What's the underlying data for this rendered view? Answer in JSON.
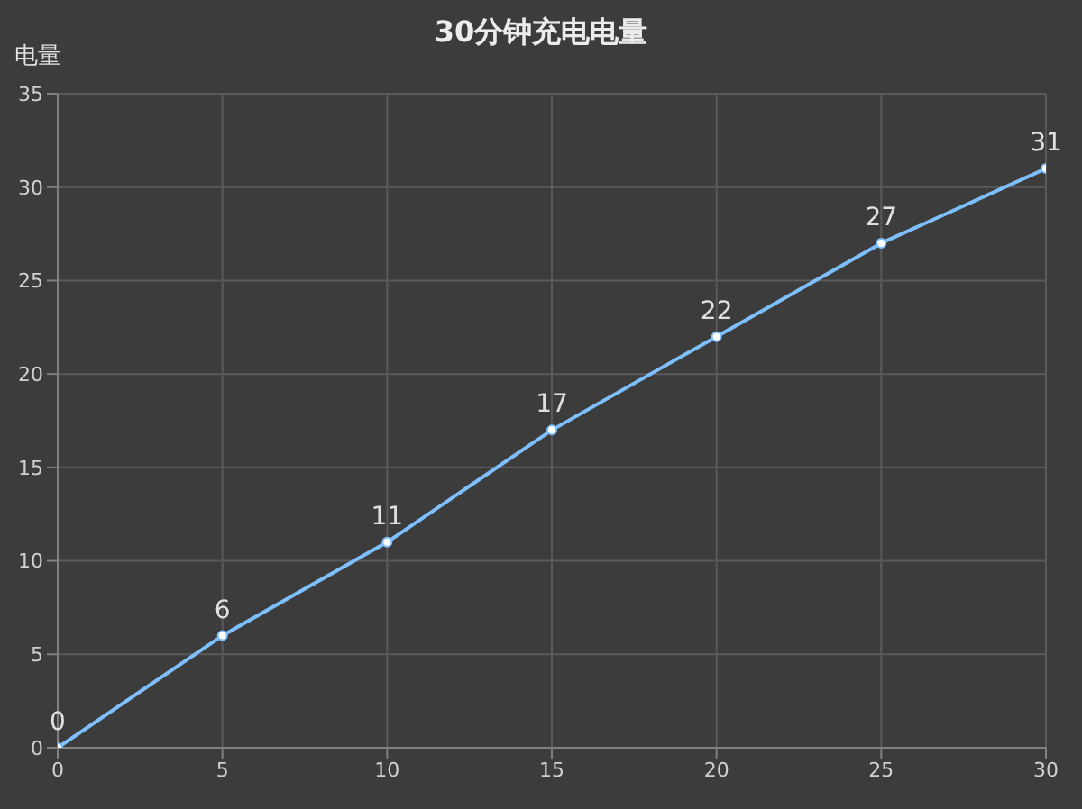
{
  "chart_data": {
    "type": "line",
    "title": "30分钟充电电量",
    "ylabel": "电量",
    "x": [
      0,
      5,
      10,
      15,
      20,
      25,
      30
    ],
    "series": [
      {
        "color": "#7ec0ff",
        "values": [
          0,
          6,
          11,
          17,
          22,
          27,
          31
        ]
      }
    ],
    "xlim": [
      0,
      30
    ],
    "xticks": [
      0,
      5,
      10,
      15,
      20,
      25,
      30
    ],
    "ylim": [
      0,
      35
    ],
    "yticks": [
      0,
      5,
      10,
      15,
      20,
      25,
      30,
      35
    ],
    "grid": true,
    "marker": "circle",
    "data_labels": true
  }
}
